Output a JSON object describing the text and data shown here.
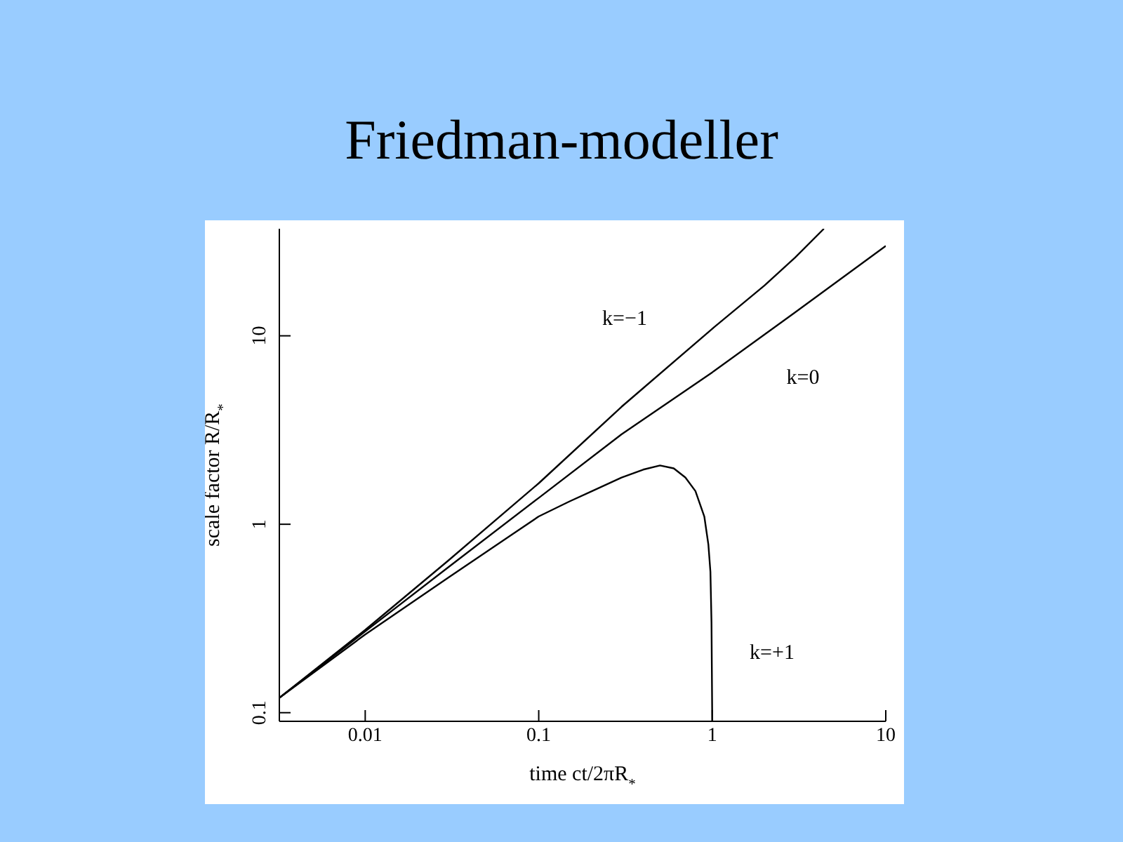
{
  "chart_data": {
    "type": "line",
    "title": "Friedman-modeller",
    "xlabel": "time ct/2πR$_{*}$",
    "ylabel": "scale factor R/R$_{*}$",
    "log": "xy",
    "grid": false,
    "marker": "none",
    "line_style": "solid",
    "xlim": [
      0.0032,
      10
    ],
    "ylim": [
      0.09,
      37
    ],
    "xticks": [
      0.01,
      0.1,
      1,
      10
    ],
    "yticks": [
      0.1,
      1,
      10
    ],
    "series": [
      {
        "name": "k=−1",
        "color": "#000000",
        "x": [
          0.0032,
          0.01,
          0.03,
          0.1,
          0.3,
          1,
          2,
          3,
          4.4
        ],
        "values": [
          0.12,
          0.275,
          0.64,
          1.65,
          4.2,
          10.9,
          18.5,
          26,
          37
        ]
      },
      {
        "name": "k=0",
        "color": "#000000",
        "x": [
          0.0032,
          0.01,
          0.03,
          0.1,
          0.3,
          1,
          3,
          10
        ],
        "values": [
          0.12,
          0.27,
          0.59,
          1.38,
          3.0,
          6.4,
          13.3,
          30
        ]
      },
      {
        "name": "k=+1",
        "color": "#000000",
        "x": [
          0.0032,
          0.01,
          0.03,
          0.1,
          0.15,
          0.2,
          0.3,
          0.4,
          0.5,
          0.6,
          0.7,
          0.8,
          0.9,
          0.95,
          0.976,
          0.99,
          1
        ],
        "values": [
          0.12,
          0.26,
          0.52,
          1.1,
          1.32,
          1.49,
          1.77,
          1.95,
          2.05,
          1.98,
          1.77,
          1.5,
          1.1,
          0.78,
          0.56,
          0.3,
          0.09
        ]
      }
    ]
  }
}
